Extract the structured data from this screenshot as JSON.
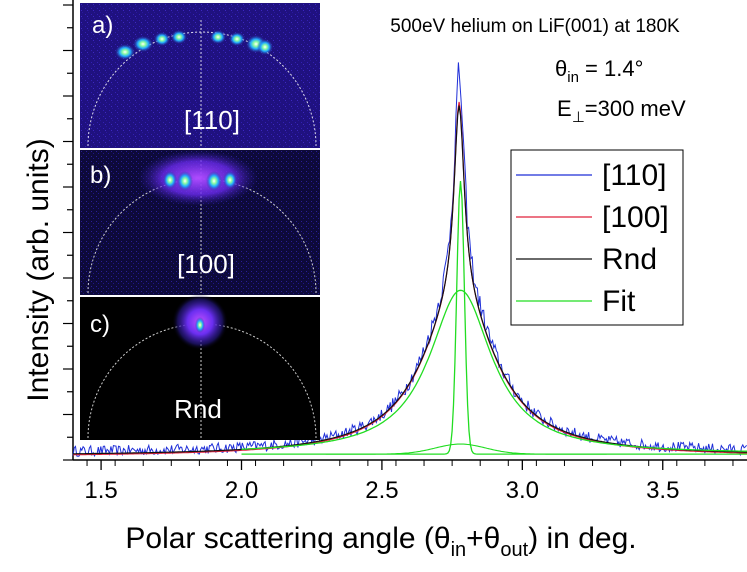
{
  "chart_data": {
    "type": "line",
    "title": "500eV helium on LiF(001) at 180K",
    "annotations": {
      "theta_in": "θin = 1.4°",
      "e_perp": "E⊥=300 meV"
    },
    "xlabel": "Polar scattering angle (θin+θout) in deg.",
    "ylabel": "Intensity (arb. units)",
    "xlim": [
      1.4,
      3.8
    ],
    "ylim": [
      0,
      100
    ],
    "x_ticks": [
      1.5,
      2.0,
      2.5,
      3.0,
      3.5
    ],
    "x_tick_labels": [
      "1.5",
      "2.0",
      "2.5",
      "3.0",
      "3.5"
    ],
    "grid": false,
    "legend_position": "right",
    "series": [
      {
        "name": "[110]",
        "color": "#1f2fd8",
        "model": "noisy",
        "peak_center": 2.775,
        "sharp_amp": 47,
        "sharp_width": 0.022,
        "broad_amp": 36,
        "broad_width": 0.15,
        "baseline": 1.5
      },
      {
        "name": "[100]",
        "color": "#e0203a",
        "model": "smooth",
        "peak_center": 2.775,
        "sharp_amp": 44,
        "sharp_width": 0.022,
        "broad_amp": 34,
        "broad_width": 0.16,
        "baseline": 0.7
      },
      {
        "name": "Rnd",
        "color": "#111111",
        "model": "smooth",
        "peak_center": 2.775,
        "sharp_amp": 43,
        "sharp_width": 0.022,
        "broad_amp": 34,
        "broad_width": 0.16,
        "baseline": 0.9
      },
      {
        "name": "Fit",
        "color": "#22dd22",
        "model": "components",
        "peak_center": 2.78,
        "sharp_amp": 60,
        "sharp_width": 0.03,
        "broad_amp": 36,
        "broad_width": 0.16,
        "baseline": 1.3
      }
    ],
    "insets": [
      {
        "panel": "a)",
        "direction": "[110]"
      },
      {
        "panel": "b)",
        "direction": "[100]"
      },
      {
        "panel": "c)",
        "direction": "Rnd"
      }
    ]
  }
}
